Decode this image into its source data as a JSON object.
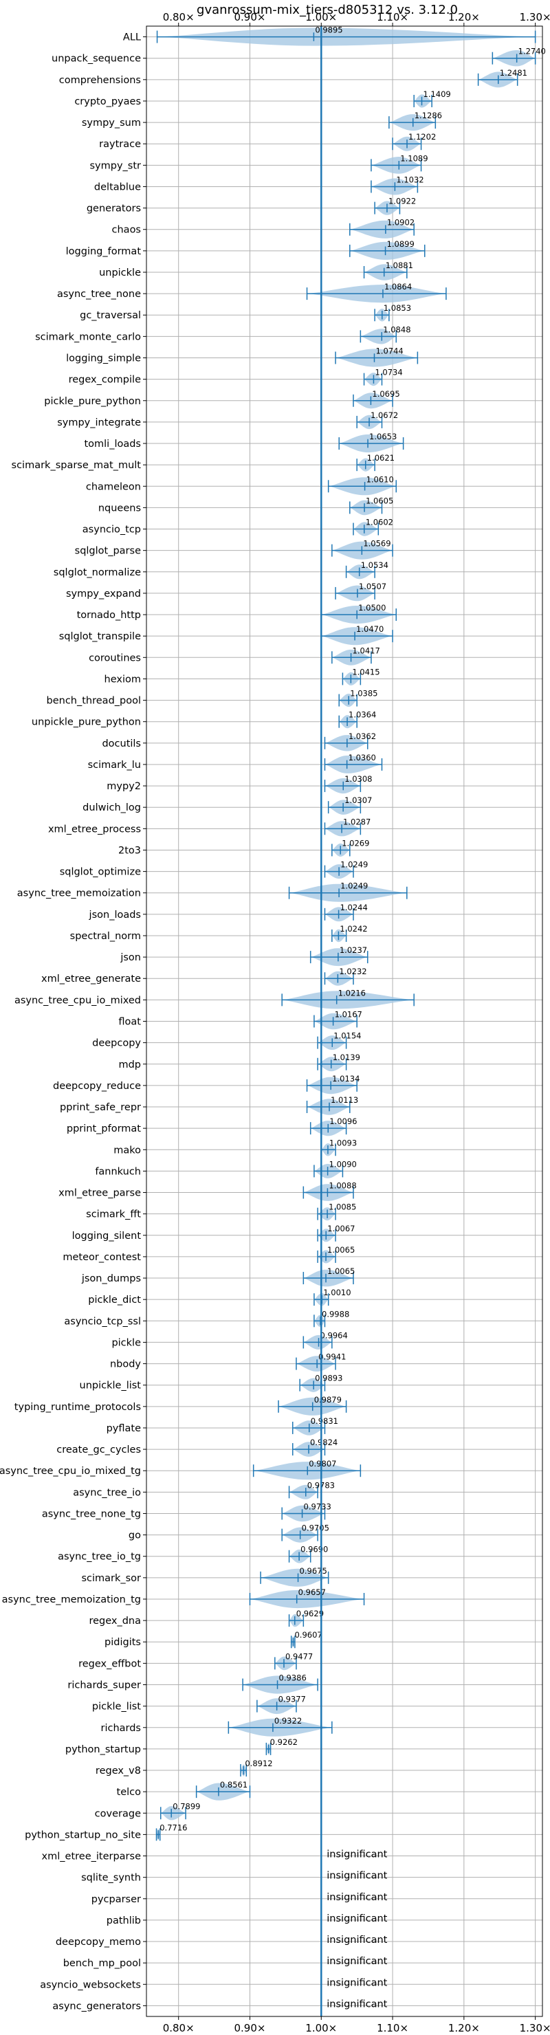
{
  "chart_data": {
    "type": "violin",
    "title": "gvanrossum-mix_tiers-d805312 vs. 3.12.0",
    "orientation": "horizontal",
    "xlim": [
      0.755,
      1.31
    ],
    "xticks": [
      0.8,
      0.9,
      1.0,
      1.1,
      1.2,
      1.3
    ],
    "xtick_labels": [
      "0.80×",
      "0.90×",
      "1.00×",
      "1.10×",
      "1.20×",
      "1.30×"
    ],
    "reference_line": 1.0,
    "grid": true,
    "colors": {
      "violin_fill": "#a6c8e4",
      "line": "#1f77b4",
      "grid": "#b0b0b0"
    },
    "insignificant_label": "insignificant",
    "benchmarks": [
      {
        "name": "ALL",
        "median": 0.9895,
        "min": 0.77,
        "max": 1.3,
        "label": "0.9895"
      },
      {
        "name": "unpack_sequence",
        "median": 1.274,
        "min": 1.24,
        "max": 1.3,
        "label": "1.2740"
      },
      {
        "name": "comprehensions",
        "median": 1.2481,
        "min": 1.22,
        "max": 1.275,
        "label": "1.2481"
      },
      {
        "name": "crypto_pyaes",
        "median": 1.1409,
        "min": 1.13,
        "max": 1.155,
        "label": "1.1409"
      },
      {
        "name": "sympy_sum",
        "median": 1.1286,
        "min": 1.095,
        "max": 1.16,
        "label": "1.1286"
      },
      {
        "name": "raytrace",
        "median": 1.1202,
        "min": 1.1,
        "max": 1.14,
        "label": "1.1202"
      },
      {
        "name": "sympy_str",
        "median": 1.1089,
        "min": 1.07,
        "max": 1.14,
        "label": "1.1089"
      },
      {
        "name": "deltablue",
        "median": 1.1032,
        "min": 1.07,
        "max": 1.135,
        "label": "1.1032"
      },
      {
        "name": "generators",
        "median": 1.0922,
        "min": 1.075,
        "max": 1.11,
        "label": "1.0922"
      },
      {
        "name": "chaos",
        "median": 1.0902,
        "min": 1.04,
        "max": 1.13,
        "label": "1.0902"
      },
      {
        "name": "logging_format",
        "median": 1.0899,
        "min": 1.04,
        "max": 1.145,
        "label": "1.0899"
      },
      {
        "name": "unpickle",
        "median": 1.0881,
        "min": 1.06,
        "max": 1.12,
        "label": "1.0881"
      },
      {
        "name": "async_tree_none",
        "median": 1.0864,
        "min": 0.98,
        "max": 1.175,
        "label": "1.0864"
      },
      {
        "name": "gc_traversal",
        "median": 1.0853,
        "min": 1.075,
        "max": 1.095,
        "label": "1.0853"
      },
      {
        "name": "scimark_monte_carlo",
        "median": 1.0848,
        "min": 1.055,
        "max": 1.105,
        "label": "1.0848"
      },
      {
        "name": "logging_simple",
        "median": 1.0744,
        "min": 1.02,
        "max": 1.135,
        "label": "1.0744"
      },
      {
        "name": "regex_compile",
        "median": 1.0734,
        "min": 1.06,
        "max": 1.085,
        "label": "1.0734"
      },
      {
        "name": "pickle_pure_python",
        "median": 1.0695,
        "min": 1.045,
        "max": 1.1,
        "label": "1.0695"
      },
      {
        "name": "sympy_integrate",
        "median": 1.0672,
        "min": 1.05,
        "max": 1.085,
        "label": "1.0672"
      },
      {
        "name": "tomli_loads",
        "median": 1.0653,
        "min": 1.025,
        "max": 1.115,
        "label": "1.0653"
      },
      {
        "name": "scimark_sparse_mat_mult",
        "median": 1.0621,
        "min": 1.05,
        "max": 1.075,
        "label": "1.0621"
      },
      {
        "name": "chameleon",
        "median": 1.061,
        "min": 1.01,
        "max": 1.105,
        "label": "1.0610"
      },
      {
        "name": "nqueens",
        "median": 1.0605,
        "min": 1.04,
        "max": 1.085,
        "label": "1.0605"
      },
      {
        "name": "asyncio_tcp",
        "median": 1.0602,
        "min": 1.045,
        "max": 1.08,
        "label": "1.0602"
      },
      {
        "name": "sqlglot_parse",
        "median": 1.0569,
        "min": 1.015,
        "max": 1.1,
        "label": "1.0569"
      },
      {
        "name": "sqlglot_normalize",
        "median": 1.0534,
        "min": 1.035,
        "max": 1.075,
        "label": "1.0534"
      },
      {
        "name": "sympy_expand",
        "median": 1.0507,
        "min": 1.02,
        "max": 1.075,
        "label": "1.0507"
      },
      {
        "name": "tornado_http",
        "median": 1.05,
        "min": 1.0,
        "max": 1.105,
        "label": "1.0500"
      },
      {
        "name": "sqlglot_transpile",
        "median": 1.047,
        "min": 1.0,
        "max": 1.1,
        "label": "1.0470"
      },
      {
        "name": "coroutines",
        "median": 1.0417,
        "min": 1.015,
        "max": 1.07,
        "label": "1.0417"
      },
      {
        "name": "hexiom",
        "median": 1.0415,
        "min": 1.03,
        "max": 1.055,
        "label": "1.0415"
      },
      {
        "name": "bench_thread_pool",
        "median": 1.0385,
        "min": 1.025,
        "max": 1.05,
        "label": "1.0385"
      },
      {
        "name": "unpickle_pure_python",
        "median": 1.0364,
        "min": 1.025,
        "max": 1.05,
        "label": "1.0364"
      },
      {
        "name": "docutils",
        "median": 1.0362,
        "min": 1.005,
        "max": 1.065,
        "label": "1.0362"
      },
      {
        "name": "scimark_lu",
        "median": 1.036,
        "min": 1.005,
        "max": 1.085,
        "label": "1.0360"
      },
      {
        "name": "mypy2",
        "median": 1.0308,
        "min": 1.005,
        "max": 1.055,
        "label": "1.0308"
      },
      {
        "name": "dulwich_log",
        "median": 1.0307,
        "min": 1.01,
        "max": 1.055,
        "label": "1.0307"
      },
      {
        "name": "xml_etree_process",
        "median": 1.0287,
        "min": 1.005,
        "max": 1.055,
        "label": "1.0287"
      },
      {
        "name": "2to3",
        "median": 1.0269,
        "min": 1.015,
        "max": 1.04,
        "label": "1.0269"
      },
      {
        "name": "sqlglot_optimize",
        "median": 1.0249,
        "min": 1.005,
        "max": 1.045,
        "label": "1.0249"
      },
      {
        "name": "async_tree_memoization",
        "median": 1.0249,
        "min": 0.955,
        "max": 1.12,
        "label": "1.0249"
      },
      {
        "name": "json_loads",
        "median": 1.0244,
        "min": 1.005,
        "max": 1.045,
        "label": "1.0244"
      },
      {
        "name": "spectral_norm",
        "median": 1.0242,
        "min": 1.015,
        "max": 1.035,
        "label": "1.0242"
      },
      {
        "name": "json",
        "median": 1.0237,
        "min": 0.985,
        "max": 1.065,
        "label": "1.0237"
      },
      {
        "name": "xml_etree_generate",
        "median": 1.0232,
        "min": 1.005,
        "max": 1.045,
        "label": "1.0232"
      },
      {
        "name": "async_tree_cpu_io_mixed",
        "median": 1.0216,
        "min": 0.945,
        "max": 1.13,
        "label": "1.0216"
      },
      {
        "name": "float",
        "median": 1.0167,
        "min": 0.99,
        "max": 1.05,
        "label": "1.0167"
      },
      {
        "name": "deepcopy",
        "median": 1.0154,
        "min": 0.995,
        "max": 1.035,
        "label": "1.0154"
      },
      {
        "name": "mdp",
        "median": 1.0139,
        "min": 0.995,
        "max": 1.035,
        "label": "1.0139"
      },
      {
        "name": "deepcopy_reduce",
        "median": 1.0134,
        "min": 0.98,
        "max": 1.05,
        "label": "1.0134"
      },
      {
        "name": "pprint_safe_repr",
        "median": 1.0113,
        "min": 0.98,
        "max": 1.04,
        "label": "1.0113"
      },
      {
        "name": "pprint_pformat",
        "median": 1.0096,
        "min": 0.985,
        "max": 1.035,
        "label": "1.0096"
      },
      {
        "name": "mako",
        "median": 1.0093,
        "min": 1.0,
        "max": 1.02,
        "label": "1.0093"
      },
      {
        "name": "fannkuch",
        "median": 1.009,
        "min": 0.99,
        "max": 1.03,
        "label": "1.0090"
      },
      {
        "name": "xml_etree_parse",
        "median": 1.0088,
        "min": 0.975,
        "max": 1.045,
        "label": "1.0088"
      },
      {
        "name": "scimark_fft",
        "median": 1.0085,
        "min": 0.995,
        "max": 1.02,
        "label": "1.0085"
      },
      {
        "name": "logging_silent",
        "median": 1.0067,
        "min": 0.995,
        "max": 1.02,
        "label": "1.0067"
      },
      {
        "name": "meteor_contest",
        "median": 1.0065,
        "min": 0.995,
        "max": 1.02,
        "label": "1.0065"
      },
      {
        "name": "json_dumps",
        "median": 1.0065,
        "min": 0.975,
        "max": 1.045,
        "label": "1.0065"
      },
      {
        "name": "pickle_dict",
        "median": 1.001,
        "min": 0.99,
        "max": 1.01,
        "label": "1.0010"
      },
      {
        "name": "asyncio_tcp_ssl",
        "median": 0.9988,
        "min": 0.99,
        "max": 1.005,
        "label": "0.9988"
      },
      {
        "name": "pickle",
        "median": 0.9964,
        "min": 0.975,
        "max": 1.015,
        "label": "0.9964"
      },
      {
        "name": "nbody",
        "median": 0.9941,
        "min": 0.965,
        "max": 1.02,
        "label": "0.9941"
      },
      {
        "name": "unpickle_list",
        "median": 0.9893,
        "min": 0.97,
        "max": 1.005,
        "label": "0.9893"
      },
      {
        "name": "typing_runtime_protocols",
        "median": 0.9879,
        "min": 0.94,
        "max": 1.035,
        "label": "0.9879"
      },
      {
        "name": "pyflate",
        "median": 0.9831,
        "min": 0.96,
        "max": 1.005,
        "label": "0.9831"
      },
      {
        "name": "create_gc_cycles",
        "median": 0.9824,
        "min": 0.96,
        "max": 1.005,
        "label": "0.9824"
      },
      {
        "name": "async_tree_cpu_io_mixed_tg",
        "median": 0.9807,
        "min": 0.905,
        "max": 1.055,
        "label": "0.9807"
      },
      {
        "name": "async_tree_io",
        "median": 0.9783,
        "min": 0.955,
        "max": 0.995,
        "label": "0.9783"
      },
      {
        "name": "async_tree_none_tg",
        "median": 0.9733,
        "min": 0.945,
        "max": 1.005,
        "label": "0.9733"
      },
      {
        "name": "go",
        "median": 0.9705,
        "min": 0.945,
        "max": 0.995,
        "label": "0.9705"
      },
      {
        "name": "async_tree_io_tg",
        "median": 0.969,
        "min": 0.955,
        "max": 0.985,
        "label": "0.9690"
      },
      {
        "name": "scimark_sor",
        "median": 0.9675,
        "min": 0.915,
        "max": 1.01,
        "label": "0.9675"
      },
      {
        "name": "async_tree_memoization_tg",
        "median": 0.9657,
        "min": 0.9,
        "max": 1.06,
        "label": "0.9657"
      },
      {
        "name": "regex_dna",
        "median": 0.9629,
        "min": 0.955,
        "max": 0.975,
        "label": "0.9629"
      },
      {
        "name": "pidigits",
        "median": 0.9607,
        "min": 0.958,
        "max": 0.963,
        "label": "0.9607"
      },
      {
        "name": "regex_effbot",
        "median": 0.9477,
        "min": 0.935,
        "max": 0.965,
        "label": "0.9477"
      },
      {
        "name": "richards_super",
        "median": 0.9386,
        "min": 0.89,
        "max": 0.995,
        "label": "0.9386"
      },
      {
        "name": "pickle_list",
        "median": 0.9377,
        "min": 0.91,
        "max": 0.965,
        "label": "0.9377"
      },
      {
        "name": "richards",
        "median": 0.9322,
        "min": 0.87,
        "max": 1.015,
        "label": "0.9322"
      },
      {
        "name": "python_startup",
        "median": 0.9262,
        "min": 0.923,
        "max": 0.929,
        "label": "0.9262"
      },
      {
        "name": "regex_v8",
        "median": 0.8912,
        "min": 0.887,
        "max": 0.895,
        "label": "0.8912"
      },
      {
        "name": "telco",
        "median": 0.8561,
        "min": 0.825,
        "max": 0.9,
        "label": "0.8561"
      },
      {
        "name": "coverage",
        "median": 0.7899,
        "min": 0.775,
        "max": 0.81,
        "label": "0.7899"
      },
      {
        "name": "python_startup_no_site",
        "median": 0.7716,
        "min": 0.769,
        "max": 0.774,
        "label": "0.7716"
      },
      {
        "name": "xml_etree_iterparse",
        "insignificant": true
      },
      {
        "name": "sqlite_synth",
        "insignificant": true
      },
      {
        "name": "pycparser",
        "insignificant": true
      },
      {
        "name": "pathlib",
        "insignificant": true
      },
      {
        "name": "deepcopy_memo",
        "insignificant": true
      },
      {
        "name": "bench_mp_pool",
        "insignificant": true
      },
      {
        "name": "asyncio_websockets",
        "insignificant": true
      },
      {
        "name": "async_generators",
        "insignificant": true
      }
    ]
  }
}
